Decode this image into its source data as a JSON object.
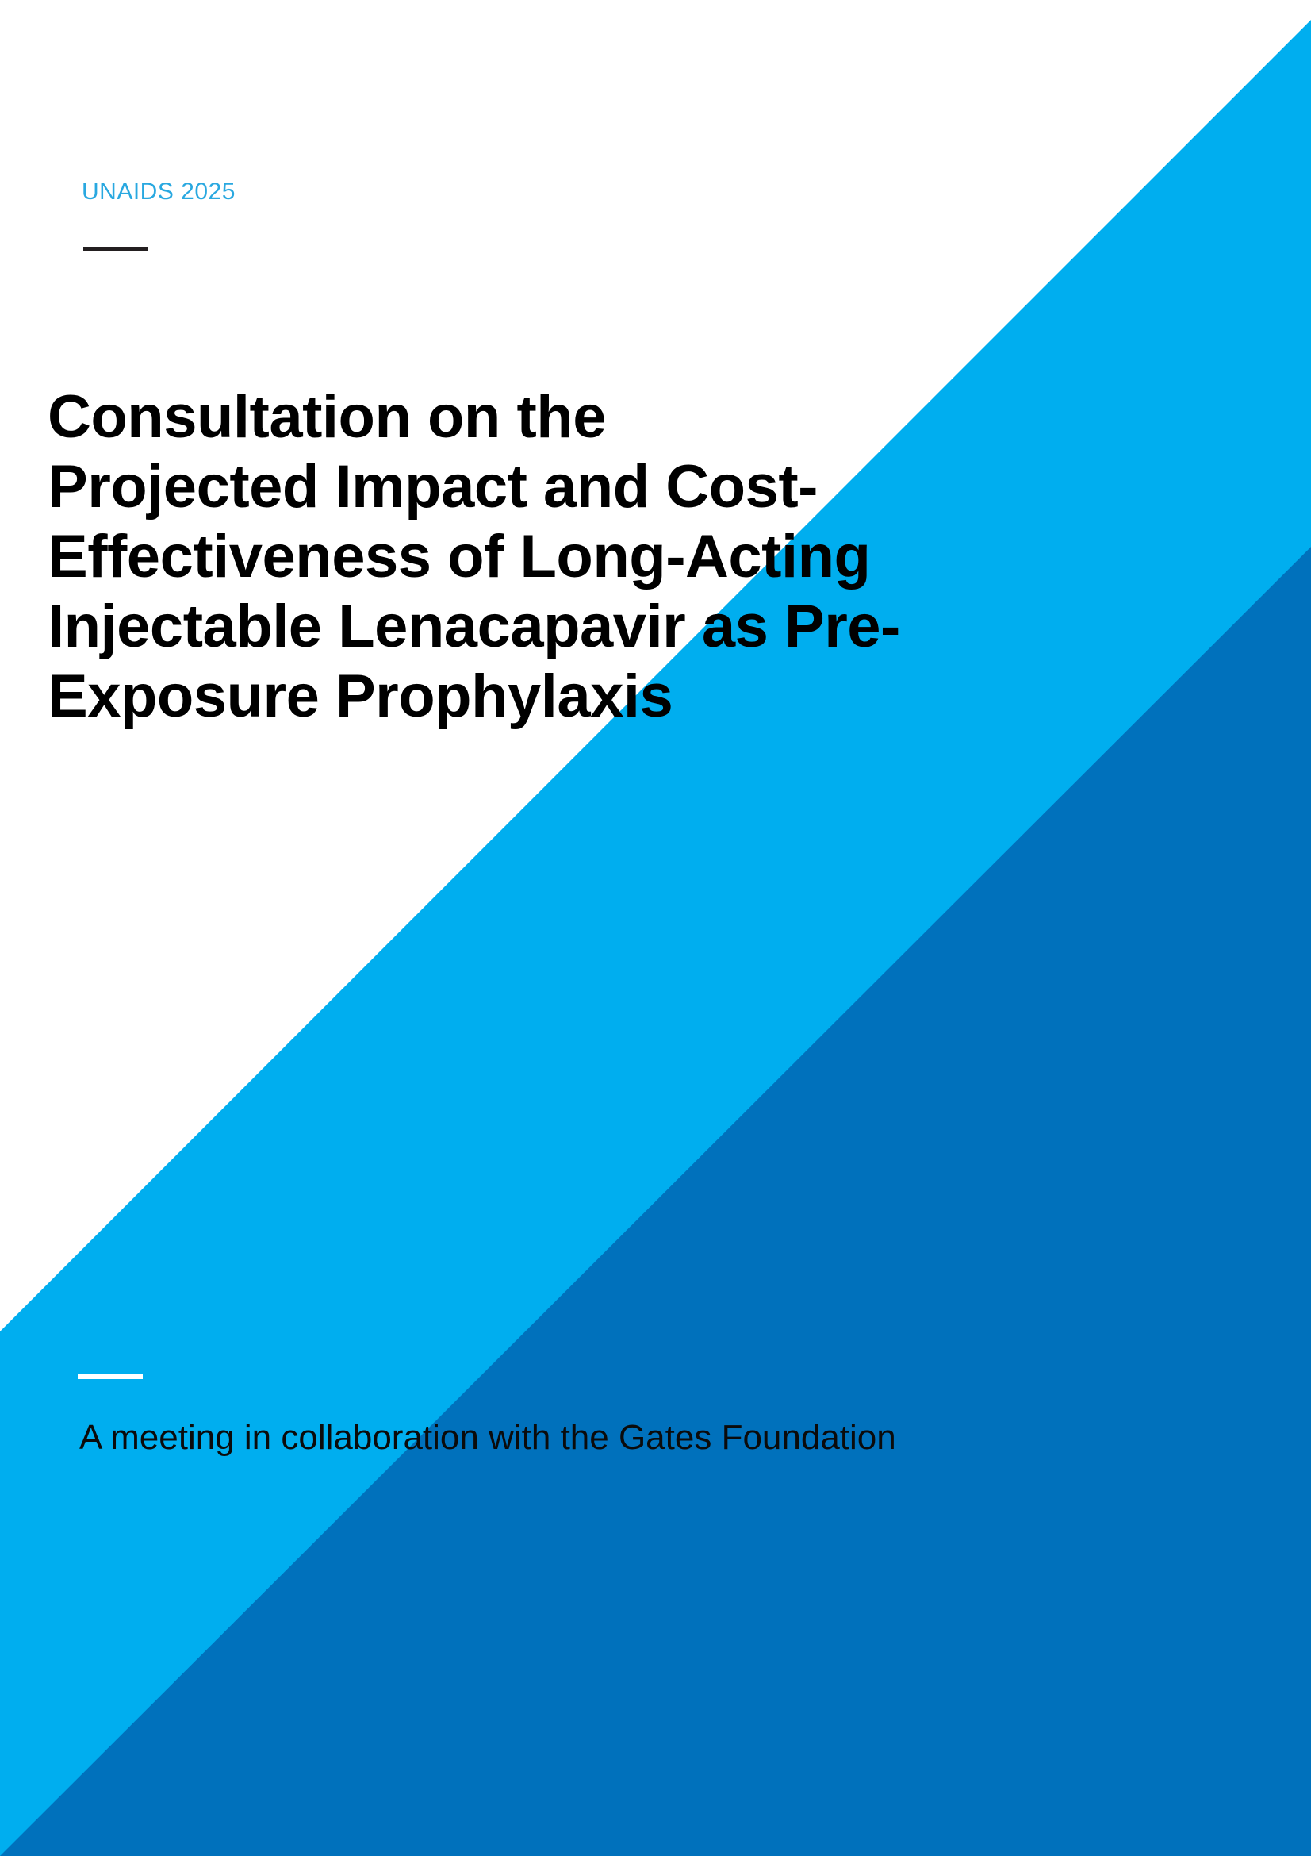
{
  "page": {
    "kind": "report-cover",
    "brand_label": "UNAIDS 2025",
    "title": "Consultation on the\nProjected Impact and Cost-\nEffectiveness of Long-Acting\nInjectable Lenacapavir as Pre-\nExposure Prophylaxis",
    "subtitle": "A meeting in collaboration with the Gates Foundation"
  },
  "colors": {
    "background": "#FFFFFF",
    "light_blue_band": "#00AEEF",
    "dark_blue_triangle": "#0071BC",
    "brand_label": "#29A8E0",
    "title_text": "#000000",
    "subtitle_text": "#0B0B0B",
    "dark_rule": "#231F20",
    "white_rule": "#FFFFFF"
  }
}
